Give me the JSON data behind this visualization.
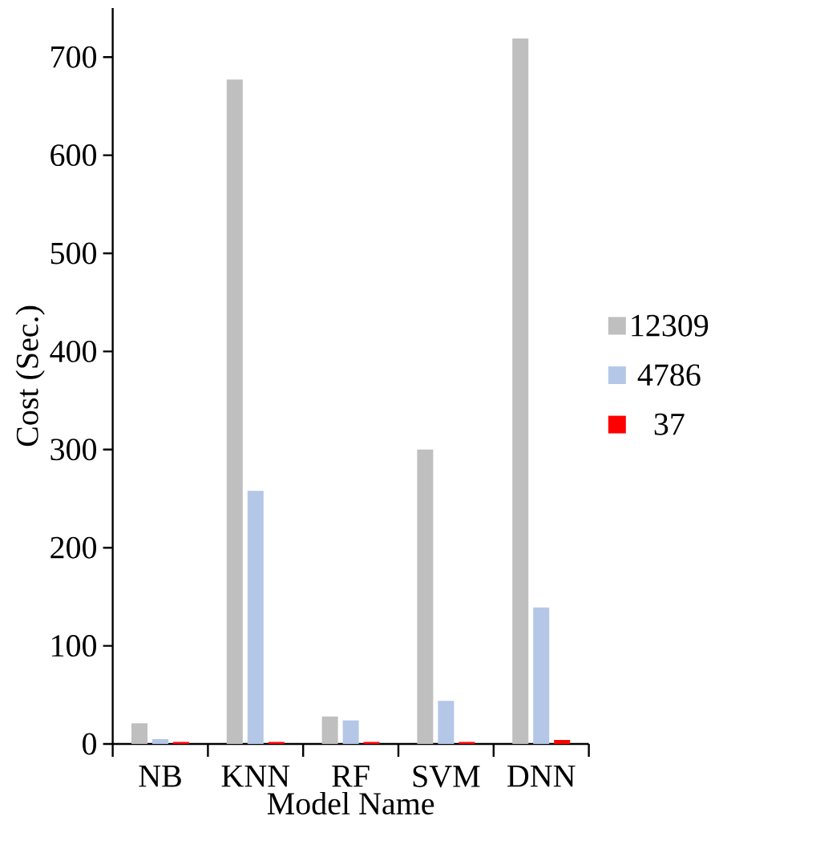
{
  "chart_data": {
    "type": "bar",
    "xlabel": "Model Name",
    "ylabel": "Cost (Sec.)",
    "categories": [
      "NB",
      "KNN",
      "RF",
      "SVM",
      "DNN"
    ],
    "series": [
      {
        "name": "12309",
        "color": "#bfbfbf",
        "values": [
          21,
          677,
          28,
          300,
          719
        ]
      },
      {
        "name": "4786",
        "color": "#b4c7e7",
        "values": [
          5,
          258,
          24,
          44,
          139
        ]
      },
      {
        "name": "37",
        "color": "#ff0000",
        "values": [
          2,
          2,
          2,
          2,
          4
        ]
      }
    ],
    "ylim": [
      0,
      750
    ],
    "yticks": [
      0,
      100,
      200,
      300,
      400,
      500,
      600,
      700
    ],
    "grid": false,
    "legend": "right"
  }
}
